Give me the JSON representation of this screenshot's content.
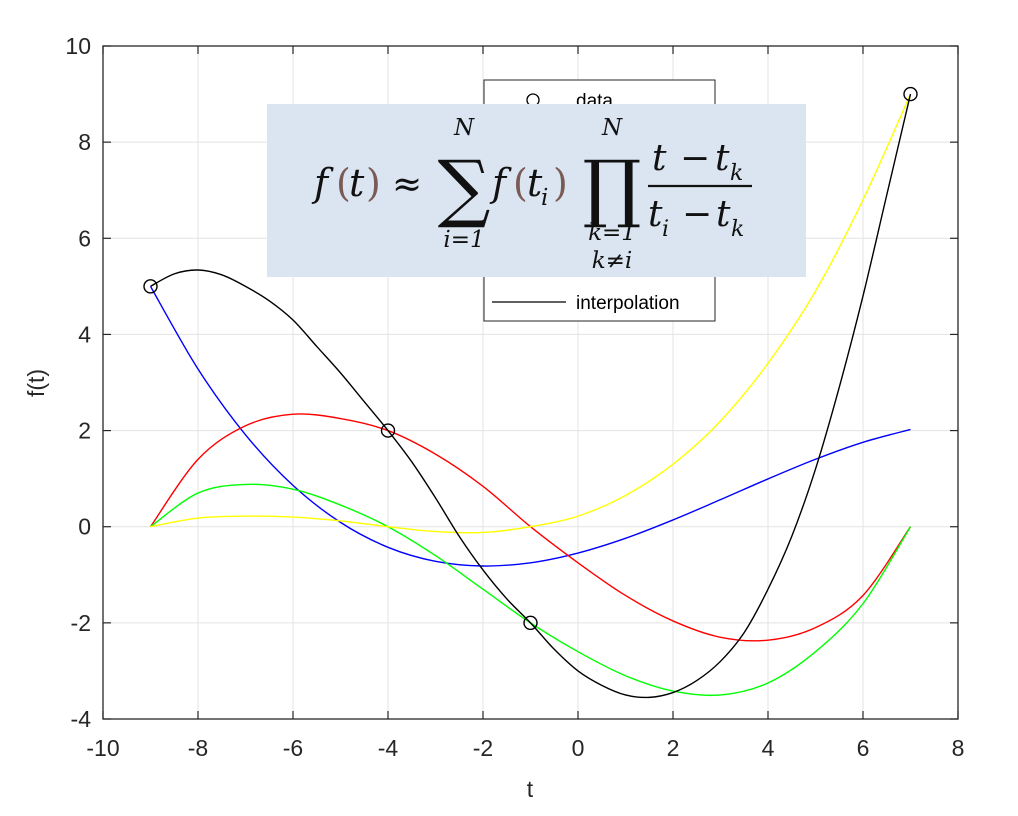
{
  "chart_data": {
    "type": "line",
    "title": "",
    "xlabel": "t",
    "ylabel": "f(t)",
    "xlim": [
      -10,
      8
    ],
    "ylim": [
      -4,
      10
    ],
    "xticks": [
      "-10",
      "-8",
      "-6",
      "-4",
      "-2",
      "0",
      "2",
      "4",
      "6",
      "8"
    ],
    "yticks": [
      "-4",
      "-2",
      "0",
      "2",
      "4",
      "6",
      "8",
      "10"
    ],
    "grid": true,
    "legend": {
      "placement": "top-center",
      "entries": [
        "data",
        "interpolation"
      ]
    },
    "data_points": {
      "name": "data",
      "x": [
        -9,
        -4,
        -1,
        7
      ],
      "y": [
        5,
        2,
        -2,
        9
      ]
    },
    "series": [
      {
        "color": "#0000ff",
        "x": [
          -9,
          -8,
          -7,
          -6,
          -5,
          -4,
          -3,
          -2,
          -1,
          0,
          1,
          2,
          3,
          4,
          5,
          6,
          7
        ],
        "y": [
          5.0,
          3.281,
          1.912,
          0.859,
          0.09,
          -0.428,
          -0.72,
          -0.817,
          -0.75,
          -0.547,
          -0.241,
          0.141,
          0.563,
          0.994,
          1.403,
          1.756,
          2.023
        ]
      },
      {
        "color": "#ff0000",
        "x": [
          -9,
          -8,
          -7,
          -6,
          -5,
          -4,
          -3,
          -2,
          -1,
          0,
          1,
          2,
          3,
          4,
          5,
          6,
          7
        ],
        "y": [
          0.0,
          1.4,
          2.1,
          2.34,
          2.25,
          2.0,
          1.51,
          0.84,
          0.0,
          -0.75,
          -1.43,
          -1.96,
          -2.3,
          -2.36,
          -2.1,
          -1.43,
          0.0
        ]
      },
      {
        "color": "#00ff00",
        "x": [
          -9,
          -8,
          -7,
          -6,
          -5,
          -4,
          -3,
          -2,
          -1,
          0,
          1,
          2,
          3,
          4,
          5,
          6,
          7
        ],
        "y": [
          0.0,
          0.7,
          0.88,
          0.78,
          0.45,
          0.0,
          -0.6,
          -1.3,
          -2.0,
          -2.6,
          -3.1,
          -3.42,
          -3.5,
          -3.25,
          -2.6,
          -1.6,
          0.0
        ]
      },
      {
        "color": "#ffff00",
        "x": [
          -9,
          -8,
          -7,
          -6,
          -5,
          -4,
          -3,
          -2,
          -1,
          0,
          1,
          2,
          3,
          4,
          5,
          6,
          7
        ],
        "y": [
          0.0,
          0.18,
          0.22,
          0.2,
          0.12,
          0.0,
          -0.1,
          -0.12,
          0.0,
          0.22,
          0.65,
          1.3,
          2.2,
          3.4,
          4.9,
          6.8,
          9.0
        ]
      },
      {
        "name": "interpolation",
        "color": "#000000",
        "x": [
          -9,
          -8.5,
          -8,
          -7.5,
          -7,
          -6.5,
          -6,
          -5.5,
          -5,
          -4.5,
          -4,
          -3.5,
          -3,
          -2.5,
          -2,
          -1.5,
          -1,
          -0.5,
          0,
          0.5,
          1,
          1.5,
          2,
          2.5,
          3,
          3.5,
          4,
          4.5,
          5,
          5.5,
          6,
          6.5,
          7
        ],
        "y": [
          5.0,
          5.26,
          5.34,
          5.24,
          5.0,
          4.7,
          4.3,
          3.75,
          3.2,
          2.6,
          2.0,
          1.35,
          0.6,
          -0.2,
          -0.9,
          -1.5,
          -2.0,
          -2.55,
          -3.0,
          -3.3,
          -3.5,
          -3.55,
          -3.45,
          -3.2,
          -2.8,
          -2.2,
          -1.3,
          -0.2,
          1.2,
          2.9,
          4.8,
          6.9,
          9.0
        ]
      }
    ]
  },
  "overlay": {
    "formula_lhs": "f",
    "formula_arg": "t",
    "formula_approx": "≈",
    "sum_symbol": "∑",
    "sum_upper": "N",
    "sum_lower": "i=1",
    "term_f": "f",
    "term_arg": "t",
    "term_sub": "i",
    "prod_symbol": "∏",
    "prod_upper": "N",
    "prod_lower_1": "k=1",
    "prod_lower_2": "k≠i",
    "num_t": "t",
    "num_minus": "−",
    "num_tk": "t",
    "num_tk_sub": "k",
    "den_ti": "t",
    "den_ti_sub": "i",
    "den_minus": "−",
    "den_tk": "t",
    "den_tk_sub": "k"
  }
}
